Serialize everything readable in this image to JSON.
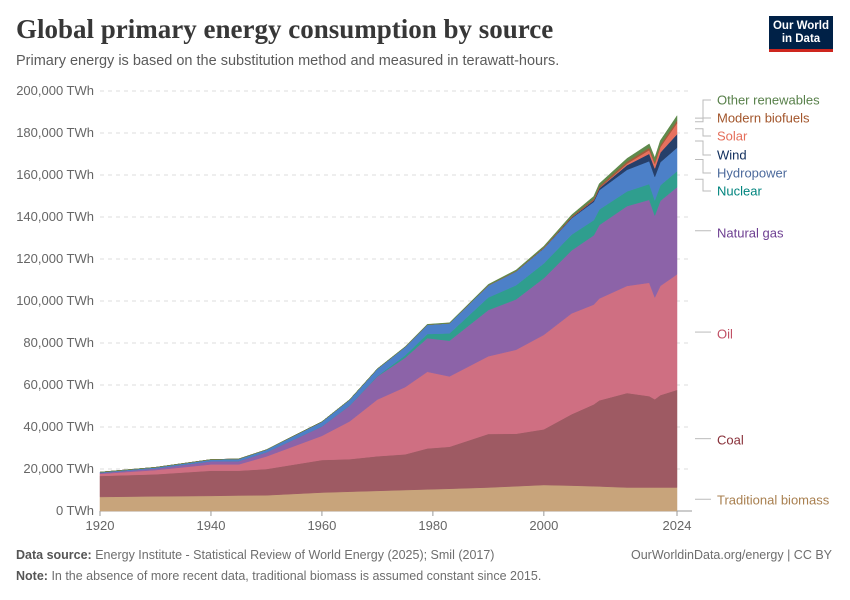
{
  "header": {
    "title": "Global primary energy consumption by source",
    "subtitle": "Primary energy is based on the substitution method and measured in terawatt-hours.",
    "logo": "Our World in Data"
  },
  "footer": {
    "source_label": "Data source:",
    "source": "Energy Institute - Statistical Review of World Energy (2025); Smil (2017)",
    "url": "OurWorldinData.org/energy | CC BY",
    "note_label": "Note:",
    "note": "In the absence of more recent data, traditional biomass is assumed constant since 2015."
  },
  "chart_data": {
    "type": "area",
    "stacked": true,
    "title": "Global primary energy consumption by source",
    "xlabel": "",
    "ylabel": "",
    "unit": "TWh",
    "xlim": [
      1920,
      2024
    ],
    "ylim": [
      0,
      200000
    ],
    "x_ticks": [
      "1920",
      "1940",
      "1960",
      "1980",
      "2000",
      "2024"
    ],
    "y_ticks": [
      "0 TWh",
      "20,000 TWh",
      "40,000 TWh",
      "60,000 TWh",
      "80,000 TWh",
      "100,000 TWh",
      "120,000 TWh",
      "140,000 TWh",
      "160,000 TWh",
      "180,000 TWh",
      "200,000 TWh"
    ],
    "grid": "horizontal dashed",
    "legend": "right (inline labels)",
    "x": [
      1920,
      1930,
      1940,
      1945,
      1950,
      1960,
      1965,
      1970,
      1975,
      1979,
      1983,
      1990,
      1995,
      2000,
      2005,
      2009,
      2010,
      2015,
      2019,
      2020,
      2021,
      2024
    ],
    "series": [
      {
        "name": "Traditional biomass",
        "color": "#c8a47b",
        "label_color": "#a87f4f",
        "values": [
          6700,
          7000,
          7200,
          7400,
          7500,
          8800,
          9200,
          9600,
          10000,
          10300,
          10600,
          11200,
          11800,
          12400,
          12100,
          11800,
          11700,
          11200,
          11200,
          11200,
          11200,
          11200
        ]
      },
      {
        "name": "Coal",
        "color": "#9e5a63",
        "label_color": "#883039",
        "values": [
          10000,
          10500,
          12000,
          11800,
          12500,
          15500,
          15500,
          16500,
          17000,
          19500,
          20000,
          25500,
          25000,
          26500,
          34000,
          39000,
          41000,
          45000,
          43500,
          42000,
          44000,
          46500
        ]
      },
      {
        "name": "Oil",
        "color": "#cf6f82",
        "label_color": "#c15065",
        "values": [
          1000,
          2000,
          3000,
          3000,
          6000,
          11500,
          18000,
          27000,
          32000,
          36500,
          33500,
          37000,
          40000,
          45000,
          48000,
          47500,
          48500,
          51000,
          54000,
          48500,
          52000,
          55000
        ]
      },
      {
        "name": "Natural gas",
        "color": "#8c63a8",
        "label_color": "#6d3e91",
        "values": [
          500,
          800,
          1500,
          1600,
          2000,
          4500,
          7500,
          11000,
          14000,
          16000,
          17000,
          22000,
          24000,
          27000,
          30000,
          33000,
          35000,
          38000,
          39500,
          39000,
          40500,
          41500
        ]
      },
      {
        "name": "Nuclear",
        "color": "#2f9e8e",
        "label_color": "#00847e",
        "values": [
          0,
          0,
          0,
          0,
          0,
          10,
          100,
          200,
          1100,
          2000,
          3500,
          6000,
          6700,
          7000,
          7500,
          7200,
          7400,
          7000,
          7500,
          7200,
          7400,
          7600
        ]
      },
      {
        "name": "Hydropower",
        "color": "#4c80c8",
        "label_color": "#4c6a9c",
        "values": [
          300,
          500,
          800,
          1000,
          1200,
          2200,
          2700,
          3400,
          4000,
          4400,
          4800,
          5700,
          6600,
          7200,
          7800,
          8700,
          9200,
          10300,
          10900,
          11200,
          11000,
          11200
        ]
      },
      {
        "name": "Wind",
        "color": "#263f6a",
        "label_color": "#0f2d5c",
        "values": [
          0,
          0,
          0,
          0,
          0,
          0,
          0,
          0,
          0,
          0,
          0,
          10,
          20,
          100,
          300,
          700,
          900,
          2200,
          3500,
          4000,
          4600,
          6400
        ]
      },
      {
        "name": "Solar",
        "color": "#e7705e",
        "label_color": "#e56e5a",
        "values": [
          0,
          0,
          0,
          0,
          0,
          0,
          0,
          0,
          0,
          0,
          0,
          0,
          0,
          10,
          10,
          50,
          90,
          700,
          1800,
          2200,
          2600,
          5300
        ]
      },
      {
        "name": "Modern biofuels",
        "color": "#a25b3a",
        "label_color": "#a2552b",
        "values": [
          0,
          0,
          0,
          0,
          0,
          0,
          0,
          0,
          0,
          0,
          0,
          100,
          150,
          300,
          500,
          800,
          900,
          1000,
          1100,
          1000,
          1100,
          1300
        ]
      },
      {
        "name": "Other renewables",
        "color": "#5f8a4c",
        "label_color": "#58804a",
        "values": [
          0,
          0,
          0,
          0,
          0,
          50,
          80,
          100,
          150,
          200,
          250,
          400,
          500,
          600,
          800,
          1100,
          1200,
          1500,
          1800,
          1900,
          2000,
          2200
        ]
      }
    ]
  }
}
